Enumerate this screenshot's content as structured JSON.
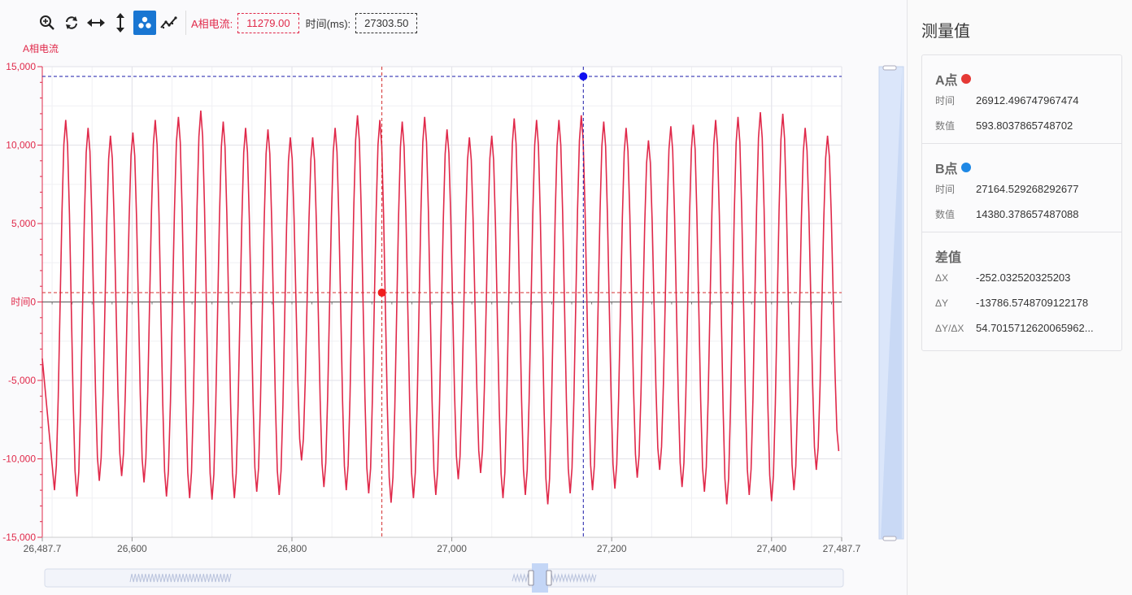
{
  "toolbar": {
    "icons": [
      "zoom-in-icon",
      "refresh-icon",
      "horizontal-resize-icon",
      "vertical-resize-icon",
      "scatter-icon",
      "trend-icon"
    ],
    "series_label": "A相电流:",
    "series_value": "11279.00",
    "time_label": "时间(ms):",
    "time_value": "27303.50",
    "colors": {
      "accent": "#1976d2",
      "series": "#e0294a"
    }
  },
  "chart_data": {
    "type": "line",
    "ylabel": "A相电流",
    "zero_label": "时间",
    "xlim": [
      26487.7,
      27487.7
    ],
    "ylim": [
      -15000,
      15000
    ],
    "x_ticks": [
      "26,487.7",
      "26,600",
      "26,800",
      "27,000",
      "27,200",
      "27,400",
      "27,487.7"
    ],
    "x_tick_values": [
      26487.7,
      26600,
      26800,
      27000,
      27200,
      27400,
      27487.7
    ],
    "y_ticks": [
      "15,000",
      "10,000",
      "5,000",
      "0",
      "-5,000",
      "-10,000",
      "-15,000"
    ],
    "y_tick_values": [
      15000,
      10000,
      5000,
      0,
      -5000,
      -10000,
      -15000
    ],
    "series": [
      {
        "name": "A相电流",
        "color": "#e0294a",
        "peaks": [
          [
            26503,
            -12000
          ],
          [
            26517,
            11600
          ],
          [
            26531,
            -12400
          ],
          [
            26545,
            11100
          ],
          [
            26559,
            -11400
          ],
          [
            26573,
            10600
          ],
          [
            26587,
            -11100
          ],
          [
            26601,
            10800
          ],
          [
            26615,
            -11500
          ],
          [
            26629,
            11600
          ],
          [
            26643,
            -12400
          ],
          [
            26658,
            11800
          ],
          [
            26672,
            -12500
          ],
          [
            26686,
            12200
          ],
          [
            26700,
            -12600
          ],
          [
            26714,
            11500
          ],
          [
            26728,
            -12500
          ],
          [
            26742,
            11100
          ],
          [
            26756,
            -12100
          ],
          [
            26770,
            11000
          ],
          [
            26784,
            -12300
          ],
          [
            26798,
            10500
          ],
          [
            26812,
            -10100
          ],
          [
            26826,
            10500
          ],
          [
            26840,
            -11800
          ],
          [
            26854,
            11100
          ],
          [
            26868,
            -12000
          ],
          [
            26882,
            11900
          ],
          [
            26896,
            -12200
          ],
          [
            26910,
            11600
          ],
          [
            26924,
            -12800
          ],
          [
            26938,
            11500
          ],
          [
            26952,
            -12500
          ],
          [
            26966,
            11800
          ],
          [
            26980,
            -12300
          ],
          [
            26994,
            11000
          ],
          [
            27008,
            -11300
          ],
          [
            27022,
            10500
          ],
          [
            27036,
            -10900
          ],
          [
            27050,
            10600
          ],
          [
            27064,
            -12500
          ],
          [
            27078,
            11700
          ],
          [
            27092,
            -12300
          ],
          [
            27106,
            11600
          ],
          [
            27120,
            -12900
          ],
          [
            27134,
            11600
          ],
          [
            27148,
            -12200
          ],
          [
            27162,
            11900
          ],
          [
            27176,
            -12000
          ],
          [
            27190,
            11500
          ],
          [
            27204,
            -11900
          ],
          [
            27218,
            11100
          ],
          [
            27232,
            -11200
          ],
          [
            27246,
            10300
          ],
          [
            27260,
            -10700
          ],
          [
            27274,
            11200
          ],
          [
            27288,
            -11800
          ],
          [
            27302,
            11300
          ],
          [
            27316,
            -12100
          ],
          [
            27330,
            11600
          ],
          [
            27344,
            -12900
          ],
          [
            27358,
            11800
          ],
          [
            27372,
            -12300
          ],
          [
            27386,
            12100
          ],
          [
            27400,
            -12700
          ],
          [
            27414,
            12000
          ],
          [
            27428,
            -12000
          ],
          [
            27442,
            11100
          ],
          [
            27456,
            -10700
          ],
          [
            27470,
            10600
          ],
          [
            27484,
            -9500
          ]
        ]
      }
    ],
    "cursor_a": {
      "label": "A点",
      "time": "26912.496747967474",
      "value": "593.8037865748702",
      "x": 26912.5,
      "y": 593.8,
      "color": "#e53935"
    },
    "cursor_b": {
      "label": "B点",
      "time": "27164.529268292677",
      "value": "14380.378657487088",
      "x": 27164.5,
      "y": 14380.4,
      "color": "#1e5fd0"
    }
  },
  "panel": {
    "title": "测量值",
    "a_label": "A点",
    "a_color": "#e53935",
    "b_label": "B点",
    "b_color": "#1e88e5",
    "time_key": "时间",
    "value_key": "数值",
    "a_time": "26912.496747967474",
    "a_value": "593.8037865748702",
    "b_time": "27164.529268292677",
    "b_value": "14380.378657487088",
    "diff_label": "差值",
    "dx_key": "ΔX",
    "dx_value": "-252.032520325203",
    "dy_key": "ΔY",
    "dy_value": "-13786.5748709122178",
    "dydx_key": "ΔY/ΔX",
    "dydx_value": "54.7015712620065962..."
  }
}
